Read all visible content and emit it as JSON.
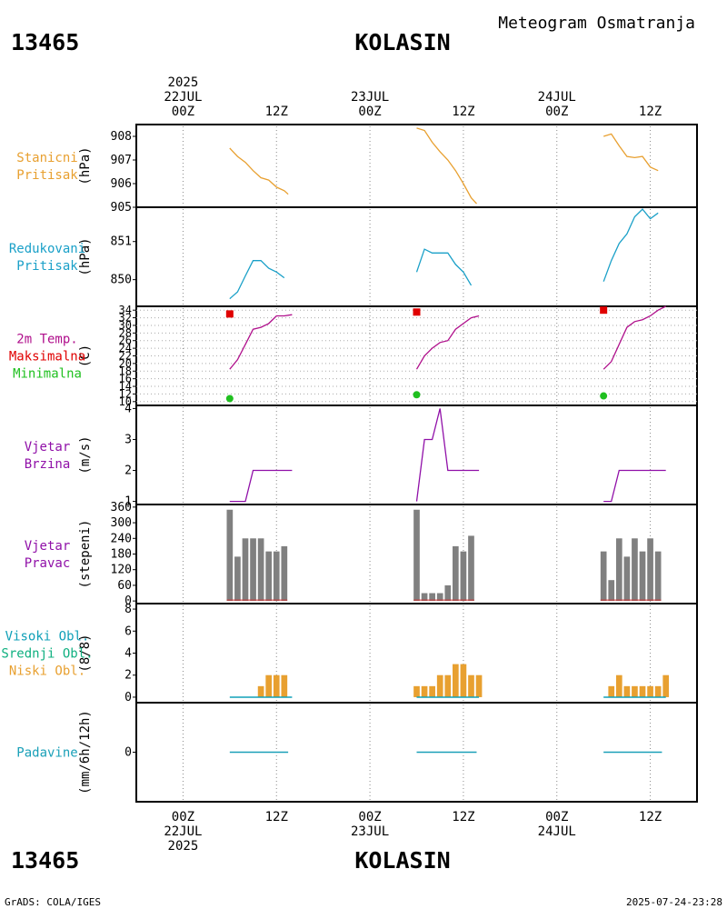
{
  "header": {
    "station_id": "13465",
    "station_name": "KOLASIN",
    "product_title": "Meteogram Osmatranja",
    "footer_left": "GrADS: COLA/IGES",
    "footer_right": "2025-07-24-23:28"
  },
  "colors": {
    "pressure_station": "#e8a030",
    "pressure_reduced": "#1aa0c8",
    "temperature": "#b0108c",
    "tmax": "#e00000",
    "tmin": "#20c020",
    "wind": "#9010a8",
    "wind_dir_bar": "#808080",
    "cloud_high": "#10a0b8",
    "cloud_mid": "#10b080",
    "cloud_low": "#e8a030",
    "precip": "#1aa0b8"
  },
  "chart_data": {
    "type": "line",
    "title": "Meteogram Osmatranja",
    "x_axis": {
      "unit": "hours since 22JUL2025 00Z",
      "range": [
        -6,
        66
      ],
      "top_labels": [
        {
          "x": 0,
          "lines": [
            "2025",
            "22JUL",
            "00Z"
          ]
        },
        {
          "x": 12,
          "lines": [
            "12Z"
          ]
        },
        {
          "x": 24,
          "lines": [
            "23JUL",
            "00Z"
          ]
        },
        {
          "x": 36,
          "lines": [
            "12Z"
          ]
        },
        {
          "x": 48,
          "lines": [
            "24JUL",
            "00Z"
          ]
        },
        {
          "x": 60,
          "lines": [
            "12Z"
          ]
        }
      ],
      "bottom_labels": [
        {
          "x": 0,
          "lines": [
            "00Z",
            "22JUL",
            "2025"
          ]
        },
        {
          "x": 12,
          "lines": [
            "12Z"
          ]
        },
        {
          "x": 24,
          "lines": [
            "00Z",
            "23JUL"
          ]
        },
        {
          "x": 36,
          "lines": [
            "12Z"
          ]
        },
        {
          "x": 48,
          "lines": [
            "00Z",
            "24JUL"
          ]
        },
        {
          "x": 60,
          "lines": [
            "12Z"
          ]
        }
      ]
    },
    "panels": [
      {
        "id": "station-pressure",
        "label_lines": [
          "Stanicni",
          "Pritisak"
        ],
        "ylabel": "(hPa)",
        "label_color_key": "pressure_station",
        "ylim": [
          905,
          908.5
        ],
        "yticks": [
          905,
          906,
          907,
          908
        ],
        "series": [
          {
            "name": "Stanicni Pritisak",
            "color_key": "pressure_station",
            "type": "line",
            "segments": [
              [
                [
                  6,
                  907.5
                ],
                [
                  7,
                  907.15
                ],
                [
                  8,
                  906.9
                ],
                [
                  9,
                  906.55
                ],
                [
                  10,
                  906.25
                ],
                [
                  11,
                  906.15
                ],
                [
                  12,
                  905.85
                ],
                [
                  13,
                  905.7
                ],
                [
                  13.5,
                  905.55
                ]
              ],
              [
                [
                  30,
                  908.35
                ],
                [
                  31,
                  908.25
                ],
                [
                  32,
                  907.75
                ],
                [
                  33,
                  907.35
                ],
                [
                  34,
                  907.0
                ],
                [
                  35,
                  906.55
                ],
                [
                  36,
                  906.0
                ],
                [
                  37,
                  905.4
                ],
                [
                  37.7,
                  905.15
                ]
              ],
              [
                [
                  54,
                  908.0
                ],
                [
                  55,
                  908.1
                ],
                [
                  56,
                  907.6
                ],
                [
                  57,
                  907.15
                ],
                [
                  58,
                  907.1
                ],
                [
                  59,
                  907.15
                ],
                [
                  60,
                  906.7
                ],
                [
                  61,
                  906.55
                ]
              ]
            ]
          }
        ]
      },
      {
        "id": "reduced-pressure",
        "label_lines": [
          "Redukovani",
          "Pritisak"
        ],
        "ylabel": "(hPa)",
        "label_color_key": "pressure_reduced",
        "ylim": [
          849.3,
          851.9
        ],
        "yticks": [
          850,
          851
        ],
        "series": [
          {
            "name": "Redukovani Pritisak",
            "color_key": "pressure_reduced",
            "type": "line",
            "segments": [
              [
                [
                  6,
                  849.5
                ],
                [
                  7,
                  849.68
                ],
                [
                  8,
                  850.1
                ],
                [
                  9,
                  850.5
                ],
                [
                  10,
                  850.5
                ],
                [
                  11,
                  850.3
                ],
                [
                  12,
                  850.2
                ],
                [
                  13,
                  850.05
                ]
              ],
              [
                [
                  30,
                  850.2
                ],
                [
                  31,
                  850.8
                ],
                [
                  32,
                  850.7
                ],
                [
                  33,
                  850.7
                ],
                [
                  34,
                  850.7
                ],
                [
                  35,
                  850.4
                ],
                [
                  36,
                  850.2
                ],
                [
                  37,
                  849.85
                ]
              ],
              [
                [
                  54,
                  849.95
                ],
                [
                  55,
                  850.5
                ],
                [
                  56,
                  850.95
                ],
                [
                  57,
                  851.2
                ],
                [
                  58,
                  851.65
                ],
                [
                  59,
                  851.85
                ],
                [
                  60,
                  851.6
                ],
                [
                  61,
                  851.75
                ]
              ]
            ]
          }
        ]
      },
      {
        "id": "temperature",
        "label_lines": [
          "2m Temp.",
          "Maksimalna",
          "Minimalna"
        ],
        "label_line_color_keys": [
          "temperature",
          "tmax",
          "tmin"
        ],
        "ylabel": "(C)",
        "ylim": [
          9,
          35
        ],
        "yticks": [
          10,
          12,
          14,
          16,
          18,
          20,
          22,
          24,
          26,
          28,
          30,
          32,
          34
        ],
        "grid": true,
        "series": [
          {
            "name": "2m Temp.",
            "color_key": "temperature",
            "type": "line",
            "segments": [
              [
                [
                  6,
                  18.5
                ],
                [
                  7,
                  21
                ],
                [
                  8,
                  25
                ],
                [
                  9,
                  29
                ],
                [
                  10,
                  29.5
                ],
                [
                  11,
                  30.5
                ],
                [
                  12,
                  32.5
                ],
                [
                  13,
                  32.5
                ],
                [
                  14,
                  32.8
                ]
              ],
              [
                [
                  30,
                  18.5
                ],
                [
                  31,
                  22
                ],
                [
                  32,
                  24
                ],
                [
                  33,
                  25.5
                ],
                [
                  34,
                  26
                ],
                [
                  35,
                  29
                ],
                [
                  36,
                  30.5
                ],
                [
                  37,
                  32
                ],
                [
                  38,
                  32.5
                ]
              ],
              [
                [
                  54,
                  18.5
                ],
                [
                  55,
                  20.5
                ],
                [
                  56,
                  25
                ],
                [
                  57,
                  29.5
                ],
                [
                  58,
                  31
                ],
                [
                  59,
                  31.5
                ],
                [
                  60,
                  32.5
                ],
                [
                  61,
                  34
                ],
                [
                  62,
                  35
                ]
              ]
            ]
          },
          {
            "name": "Maksimalna",
            "color_key": "tmax",
            "type": "square",
            "points": [
              [
                6,
                33
              ],
              [
                30,
                33.5
              ],
              [
                54,
                34
              ]
            ]
          },
          {
            "name": "Minimalna",
            "color_key": "tmin",
            "type": "dot",
            "points": [
              [
                6,
                10.8
              ],
              [
                30,
                11.8
              ],
              [
                54,
                11.5
              ]
            ]
          }
        ]
      },
      {
        "id": "wind-speed",
        "label_lines": [
          "Vjetar",
          "Brzina"
        ],
        "ylabel": "(m/s)",
        "label_color_key": "wind",
        "ylim": [
          0.9,
          4.1
        ],
        "yticks": [
          1,
          2,
          3,
          4
        ],
        "series": [
          {
            "name": "Vjetar Brzina",
            "color_key": "wind",
            "type": "line",
            "segments": [
              [
                [
                  6,
                  1
                ],
                [
                  7,
                  1
                ],
                [
                  8,
                  1
                ],
                [
                  9,
                  2
                ],
                [
                  10,
                  2
                ],
                [
                  11,
                  2
                ],
                [
                  12,
                  2
                ],
                [
                  13,
                  2
                ],
                [
                  14,
                  2
                ]
              ],
              [
                [
                  30,
                  1
                ],
                [
                  31,
                  3
                ],
                [
                  32,
                  3
                ],
                [
                  33,
                  4
                ],
                [
                  34,
                  2
                ],
                [
                  35,
                  2
                ],
                [
                  36,
                  2
                ],
                [
                  37,
                  2
                ],
                [
                  38,
                  2
                ]
              ],
              [
                [
                  54,
                  1
                ],
                [
                  55,
                  1
                ],
                [
                  56,
                  2
                ],
                [
                  57,
                  2
                ],
                [
                  58,
                  2
                ],
                [
                  59,
                  2
                ],
                [
                  60,
                  2
                ],
                [
                  61,
                  2
                ],
                [
                  62,
                  2
                ]
              ]
            ]
          }
        ]
      },
      {
        "id": "wind-direction",
        "label_lines": [
          "Vjetar",
          "Pravac"
        ],
        "ylabel": "(stepeni)",
        "label_color_key": "wind",
        "ylim": [
          -10,
          370
        ],
        "yticks": [
          0,
          60,
          120,
          180,
          240,
          300,
          360
        ],
        "series": [
          {
            "name": "Vjetar Pravac",
            "color_key": "wind_dir_bar",
            "type": "bar",
            "points": [
              [
                6,
                350
              ],
              [
                7,
                170
              ],
              [
                8,
                240
              ],
              [
                9,
                240
              ],
              [
                10,
                240
              ],
              [
                11,
                190
              ],
              [
                12,
                190
              ],
              [
                13,
                210
              ],
              [
                30,
                350
              ],
              [
                31,
                30
              ],
              [
                32,
                30
              ],
              [
                33,
                30
              ],
              [
                34,
                60
              ],
              [
                35,
                210
              ],
              [
                36,
                190
              ],
              [
                37,
                250
              ],
              [
                54,
                190
              ],
              [
                55,
                80
              ],
              [
                56,
                240
              ],
              [
                57,
                170
              ],
              [
                58,
                240
              ],
              [
                59,
                190
              ],
              [
                60,
                240
              ],
              [
                61,
                190
              ]
            ]
          }
        ]
      },
      {
        "id": "clouds",
        "label_lines": [
          "Visoki Obl.",
          "Srednji Obl.",
          "Niski Obl."
        ],
        "label_line_color_keys": [
          "cloud_high",
          "cloud_mid",
          "cloud_low"
        ],
        "ylabel": "(8/8)",
        "ylim": [
          -0.5,
          8.5
        ],
        "yticks": [
          0,
          2,
          4,
          6,
          8
        ],
        "series": [
          {
            "name": "Niski Obl.",
            "color_key": "cloud_low",
            "type": "bar",
            "points": [
              [
                10,
                1
              ],
              [
                11,
                2
              ],
              [
                12,
                2
              ],
              [
                13,
                2
              ],
              [
                30,
                1
              ],
              [
                31,
                1
              ],
              [
                32,
                1
              ],
              [
                33,
                2
              ],
              [
                34,
                2
              ],
              [
                35,
                3
              ],
              [
                36,
                3
              ],
              [
                37,
                2
              ],
              [
                38,
                2
              ],
              [
                55,
                1
              ],
              [
                56,
                2
              ],
              [
                57,
                1
              ],
              [
                58,
                1
              ],
              [
                59,
                1
              ],
              [
                60,
                1
              ],
              [
                61,
                1
              ],
              [
                62,
                2
              ]
            ]
          },
          {
            "name": "Visoki Obl.",
            "color_key": "cloud_high",
            "type": "baseline",
            "ranges": [
              [
                6,
                14
              ],
              [
                30,
                38
              ],
              [
                54,
                62
              ]
            ]
          }
        ]
      },
      {
        "id": "precipitation",
        "label_lines": [
          "Padavine"
        ],
        "ylabel": "(mm/6h/12h)",
        "label_color_key": "precip",
        "ylim": [
          -5,
          5
        ],
        "yticks": [
          0
        ],
        "series": [
          {
            "name": "Padavine",
            "color_key": "precip",
            "type": "baseline",
            "ranges": [
              [
                6,
                13.5
              ],
              [
                30,
                37.7
              ],
              [
                54,
                61.5
              ]
            ]
          }
        ]
      }
    ]
  }
}
